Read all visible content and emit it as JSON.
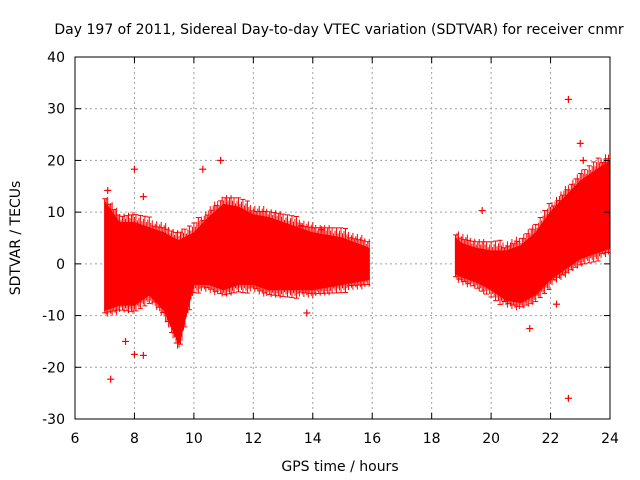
{
  "chart_data": {
    "type": "scatter",
    "title": "Day 197 of 2011, Sidereal Day-to-day VTEC variation (SDTVAR) for receiver cnmr",
    "xlabel": "GPS time / hours",
    "ylabel": "SDTVAR / TECUs",
    "xlim": [
      6,
      24
    ],
    "ylim": [
      -30,
      40
    ],
    "grid": true,
    "x_ticks": [
      6,
      8,
      10,
      12,
      14,
      16,
      18,
      20,
      22,
      24
    ],
    "y_ticks": [
      -30,
      -20,
      -10,
      0,
      10,
      20,
      30,
      40
    ],
    "x_tick_labels": [
      "6",
      "8",
      "10",
      "12",
      "14",
      "16",
      "18",
      "20",
      "22",
      "24"
    ],
    "y_tick_labels": [
      "-30",
      "-20",
      "-10",
      "0",
      "10",
      "20",
      "30",
      "40"
    ],
    "series": [
      {
        "name": "SDTVAR",
        "color": "#ff0000",
        "style": "points with error bars (dense band)",
        "bands": [
          {
            "x": [
              7.0,
              7.5,
              8.0,
              8.5,
              9.0,
              9.3,
              9.5,
              10.0,
              10.5,
              11.0,
              11.5,
              12.0,
              12.5,
              13.0,
              14.0,
              15.0,
              15.9
            ],
            "upper": [
              12,
              8,
              8,
              7,
              6,
              5,
              4.5,
              6,
              9,
              11.5,
              11,
              9.5,
              9,
              8,
              6,
              5,
              3
            ],
            "lower": [
              -9,
              -8,
              -8,
              -6,
              -9,
              -13,
              -15.5,
              -4,
              -4,
              -5,
              -4,
              -4,
              -5,
              -5,
              -5,
              -4,
              -3
            ]
          },
          {
            "x": [
              18.8,
              19.0,
              19.5,
              20.0,
              20.5,
              21.0,
              21.5,
              22.0,
              22.5,
              23.0,
              23.5,
              24.0
            ],
            "upper": [
              5,
              4,
              3,
              2.5,
              2.5,
              3.5,
              6,
              10,
              13,
              16,
              18,
              20
            ],
            "lower": [
              -2,
              -2.5,
              -3.5,
              -5,
              -7,
              -7.5,
              -6,
              -3,
              -1,
              1,
              2,
              3
            ]
          }
        ],
        "outliers": [
          {
            "x": 7.1,
            "y": 14.2
          },
          {
            "x": 7.2,
            "y": -22.3
          },
          {
            "x": 8.0,
            "y": 18.3
          },
          {
            "x": 8.0,
            "y": -17.5
          },
          {
            "x": 8.3,
            "y": 13.0
          },
          {
            "x": 8.3,
            "y": -17.7
          },
          {
            "x": 7.7,
            "y": -15.0
          },
          {
            "x": 10.3,
            "y": 18.3
          },
          {
            "x": 10.9,
            "y": 20.0
          },
          {
            "x": 13.6,
            "y": 7.3
          },
          {
            "x": 13.8,
            "y": -9.5
          },
          {
            "x": 14.3,
            "y": 6.6
          },
          {
            "x": 19.7,
            "y": 10.3
          },
          {
            "x": 21.3,
            "y": -12.5
          },
          {
            "x": 22.2,
            "y": -7.8
          },
          {
            "x": 22.6,
            "y": 31.8
          },
          {
            "x": 22.6,
            "y": -26.0
          },
          {
            "x": 23.0,
            "y": 23.3
          },
          {
            "x": 23.1,
            "y": 20.0
          }
        ]
      }
    ]
  }
}
